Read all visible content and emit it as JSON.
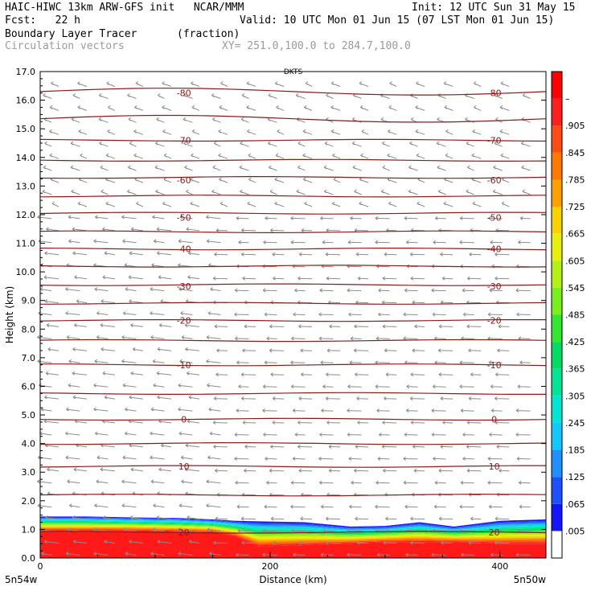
{
  "header": {
    "model": "HAIC-HIWC 13km ARW-GFS init",
    "org": "NCAR/MMM",
    "init": "Init: 12 UTC Sun 31 May 15",
    "fcst_label": "Fcst:",
    "fcst_value": "22 h",
    "valid": "Valid: 10 UTC Mon 01 Jun 15 (07 LST Mon 01 Jun 15)",
    "field": "Boundary Layer Tracer",
    "units": "(fraction)",
    "overlay": "Circulation vectors",
    "xy": "XY= 251.0,100.0 to 284.7,100.0"
  },
  "colors": {
    "contour": "#8b1a1a",
    "vector": "#8c8c8c",
    "tracer_high": "#ff1a1a"
  },
  "chart_data": {
    "type": "heatmap",
    "title": "Boundary Layer Tracer",
    "xlabel": "Distance (km)",
    "ylabel": "Height (km)",
    "xlim": [
      0,
      440
    ],
    "ylim": [
      0,
      17
    ],
    "x_ticks": [
      0,
      200,
      400
    ],
    "x_tick_labels": [
      "0",
      "200",
      "400"
    ],
    "y_ticks": [
      0,
      1,
      2,
      3,
      4,
      5,
      6,
      7,
      8,
      9,
      10,
      11,
      12,
      13,
      14,
      15,
      16,
      17
    ],
    "y_tick_labels": [
      "0.0",
      "1.0",
      "2.0",
      "3.0",
      "4.0",
      "5.0",
      "6.0",
      "7.0",
      "8.0",
      "9.0",
      "10.0",
      "11.0",
      "12.0",
      "13.0",
      "14.0",
      "15.0",
      "16.0",
      "17.0"
    ],
    "left_end_label": "5n54w",
    "right_end_label": "5n50w",
    "top_label": "DKTS",
    "temperature_contours": {
      "levels_labeled": [
        {
          "label": "-80",
          "height_km": 16.25
        },
        {
          "label": "-70",
          "height_km": 14.6
        },
        {
          "label": "-60",
          "height_km": 13.2
        },
        {
          "label": "-50",
          "height_km": 11.9
        },
        {
          "label": "-40",
          "height_km": 10.8
        },
        {
          "label": "-30",
          "height_km": 9.5
        },
        {
          "label": "-20",
          "height_km": 8.3
        },
        {
          "label": "-10",
          "height_km": 6.75
        },
        {
          "label": "0",
          "height_km": 4.85
        },
        {
          "label": "10",
          "height_km": 3.2
        },
        {
          "label": "20",
          "height_km": 0.9
        }
      ],
      "line_heights_km": [
        16.3,
        15.35,
        14.6,
        13.9,
        13.3,
        12.65,
        12.05,
        11.4,
        10.8,
        10.2,
        9.55,
        8.9,
        8.3,
        7.6,
        6.75,
        5.75,
        4.85,
        4.0,
        3.2,
        2.2,
        0.9
      ]
    },
    "tracer_profile": {
      "x_km": [
        0,
        40,
        80,
        120,
        150,
        170,
        190,
        230,
        270,
        300,
        330,
        360,
        400,
        440
      ],
      "top_km": [
        1.45,
        1.45,
        1.42,
        1.4,
        1.35,
        1.3,
        1.28,
        1.25,
        1.1,
        1.12,
        1.25,
        1.1,
        1.3,
        1.35
      ],
      "red_top_km": [
        0.95,
        0.95,
        0.95,
        0.92,
        0.9,
        0.75,
        0.4,
        0.45,
        0.5,
        0.55,
        0.55,
        0.55,
        0.5,
        0.5
      ]
    },
    "colorbar": {
      "labels": [
        ".005",
        ".065",
        ".125",
        ".185",
        ".245",
        ".305",
        ".365",
        ".425",
        ".485",
        ".545",
        ".605",
        ".665",
        ".725",
        ".785",
        ".845",
        ".905",
        "–"
      ],
      "colors": [
        "#ffffff",
        "#1414ff",
        "#1e50ff",
        "#1e90ff",
        "#14c8ff",
        "#00e6d2",
        "#00e696",
        "#00dc64",
        "#32e632",
        "#78f01e",
        "#b4f014",
        "#e6f00a",
        "#fad200",
        "#ffa000",
        "#ff7800",
        "#ff4b14",
        "#ff1e1e",
        "#ff0000"
      ]
    }
  }
}
